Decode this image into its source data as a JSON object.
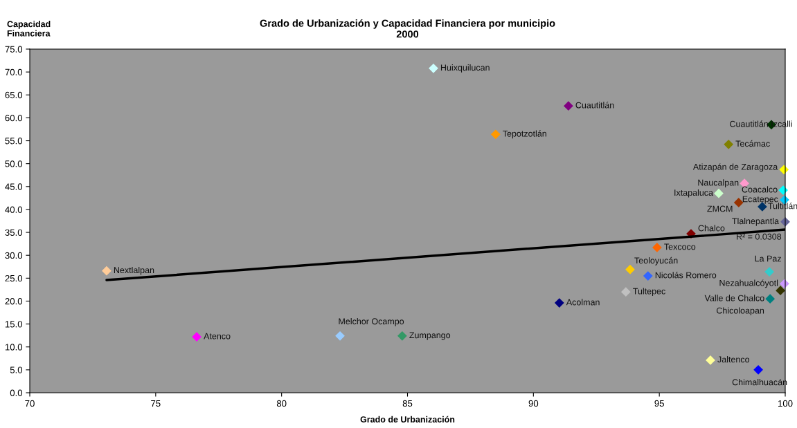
{
  "chart_data": {
    "type": "scatter",
    "title": "Grado de Urbanización y Capacidad Financiera por municipio\n2000",
    "xlabel": "Grado de Urbanización",
    "ylabel": "Capacidad\nFinanciera",
    "xlim": [
      70,
      100
    ],
    "xticks": [
      70,
      75,
      80,
      85,
      90,
      95,
      100
    ],
    "ylim": [
      0,
      75
    ],
    "yticks": [
      {
        "value": 0,
        "label": "0.0"
      },
      {
        "value": 5,
        "label": "5.0"
      },
      {
        "value": 10,
        "label": "10.0"
      },
      {
        "value": 15,
        "label": "15.0"
      },
      {
        "value": 20,
        "label": "20.0"
      },
      {
        "value": 25,
        "label": "25.0"
      },
      {
        "value": 30,
        "label": "30.0"
      },
      {
        "value": 35,
        "label": "35.0"
      },
      {
        "value": 40,
        "label": "40.0"
      },
      {
        "value": 45,
        "label": "45.0"
      },
      {
        "value": 50,
        "label": "50.0"
      },
      {
        "value": 55,
        "label": "55.0"
      },
      {
        "value": 60,
        "label": "60.0"
      },
      {
        "value": 65,
        "label": "65.0"
      },
      {
        "value": 70,
        "label": "70.0"
      },
      {
        "value": 75,
        "label": "75.0"
      }
    ],
    "grid": false,
    "legend": false,
    "marker": "diamond",
    "series": [
      {
        "x": [
          73.05,
          76.63,
          82.32,
          84.79,
          86.03,
          88.5,
          91.39,
          91.03,
          93.67,
          93.84,
          94.55,
          94.91,
          96.26,
          97.03,
          97.36,
          98.15,
          97.75,
          98.38,
          98.93,
          99.09,
          99.45,
          99.37,
          99.4,
          99.81,
          99.97,
          99.95,
          99.92,
          99.97,
          100.0
        ],
        "values": [
          26.6,
          12.2,
          12.4,
          12.4,
          70.8,
          56.4,
          62.6,
          19.6,
          22.0,
          26.9,
          25.5,
          31.7,
          34.7,
          7.1,
          43.5,
          41.5,
          54.2,
          45.7,
          5.0,
          40.6,
          58.5,
          26.4,
          20.5,
          22.3,
          23.8,
          48.7,
          44.2,
          42.1,
          37.3
        ],
        "colors": [
          "#ffcc99",
          "#ff00ff",
          "#99ccff",
          "#339966",
          "#ccffff",
          "#ff9900",
          "#800080",
          "#000080",
          "#c0c0c0",
          "#ffcc00",
          "#3366ff",
          "#ff6600",
          "#800000",
          "#ffff99",
          "#ccffcc",
          "#993300",
          "#808000",
          "#ff99cc",
          "#0000ff",
          "#003366",
          "#003300",
          "#33cccc",
          "#008080",
          "#333300",
          "#cc99ff",
          "#ffff00",
          "#00ffff",
          "#00ccff",
          "#666699"
        ]
      },
      {
        "type": "line",
        "x": [
          73.05,
          100.0
        ],
        "values": [
          24.6,
          35.6
        ],
        "color": "#000000",
        "marker": "none"
      }
    ],
    "annotations": [
      {
        "text": "Nextlalpan",
        "x": 73.05,
        "y": 26.6
      },
      {
        "text": "Atenco",
        "x": 76.63,
        "y": 12.2
      },
      {
        "text": "Melchor Ocampo",
        "x": 82.32,
        "y": 12.4
      },
      {
        "text": "Zumpango",
        "x": 84.79,
        "y": 12.4
      },
      {
        "text": "Huixquilucan",
        "x": 86.03,
        "y": 70.8
      },
      {
        "text": "Tepotzotlán",
        "x": 88.5,
        "y": 56.4
      },
      {
        "text": "Cuautitlán",
        "x": 91.39,
        "y": 62.6
      },
      {
        "text": "Acolman",
        "x": 91.03,
        "y": 19.6
      },
      {
        "text": "Tultepec",
        "x": 93.67,
        "y": 22.0
      },
      {
        "text": "Teoloyucán",
        "x": 93.84,
        "y": 26.9
      },
      {
        "text": "Nicolás Romero",
        "x": 94.55,
        "y": 25.5
      },
      {
        "text": "Texcoco",
        "x": 94.91,
        "y": 31.7
      },
      {
        "text": "Chalco",
        "x": 96.26,
        "y": 34.7
      },
      {
        "text": "Jaltenco",
        "x": 97.03,
        "y": 7.1
      },
      {
        "text": "Ixtapaluca",
        "x": 97.36,
        "y": 43.5
      },
      {
        "text": "ZMCM",
        "x": 98.15,
        "y": 41.5
      },
      {
        "text": "Tecámac",
        "x": 97.75,
        "y": 54.2
      },
      {
        "text": "Naucalpan",
        "x": 98.38,
        "y": 45.7
      },
      {
        "text": "Chimalhuacán",
        "x": 98.93,
        "y": 5.0
      },
      {
        "text": "Tultitlán",
        "x": 99.09,
        "y": 40.6
      },
      {
        "text": "Cuautitlán Izcalli",
        "x": 99.45,
        "y": 58.5
      },
      {
        "text": "La Paz",
        "x": 99.37,
        "y": 26.4
      },
      {
        "text": "Valle de Chalco",
        "x": 99.4,
        "y": 20.5
      },
      {
        "text": "Chicoloapan",
        "x": 99.81,
        "y": 22.3
      },
      {
        "text": "Nezahualcóyotl",
        "x": 99.97,
        "y": 23.8
      },
      {
        "text": "Atizapán de Zaragoza",
        "x": 99.95,
        "y": 48.7
      },
      {
        "text": "Coacalco",
        "x": 99.92,
        "y": 44.2
      },
      {
        "text": "Ecatepec",
        "x": 99.97,
        "y": 42.1
      },
      {
        "text": "Tlalnepantla",
        "x": 100.0,
        "y": 37.3
      },
      "R² = 0.0308"
    ]
  }
}
